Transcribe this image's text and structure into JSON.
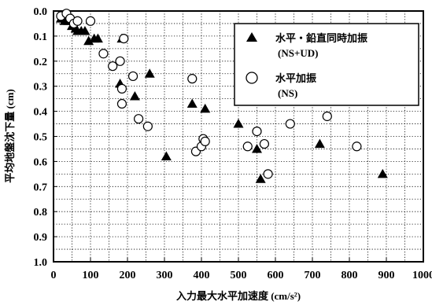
{
  "chart_data": {
    "type": "scatter",
    "xlabel": "入力最大水平加速度 (cm/s²)",
    "ylabel": "平均地盤沈下量 (cm)",
    "xlim": [
      0,
      1000
    ],
    "ylim": [
      0,
      1.0
    ],
    "y_inverted": true,
    "x_ticks": [
      "0",
      "100",
      "200",
      "300",
      "400",
      "500",
      "600",
      "700",
      "800",
      "900",
      "1000"
    ],
    "y_ticks": [
      "0.0",
      "0.1",
      "0.2",
      "0.3",
      "0.4",
      "0.5",
      "0.6",
      "0.7",
      "0.8",
      "0.9",
      "1.0"
    ],
    "grid": true,
    "legend_position": "top-right",
    "series": [
      {
        "name": "水平・鉛直同時加振\n(NS+UD)",
        "marker": "filled-triangle",
        "color": "#000000",
        "points": [
          {
            "x": 20,
            "y": 0.03
          },
          {
            "x": 30,
            "y": 0.04
          },
          {
            "x": 40,
            "y": 0.04
          },
          {
            "x": 50,
            "y": 0.06
          },
          {
            "x": 60,
            "y": 0.07
          },
          {
            "x": 65,
            "y": 0.08
          },
          {
            "x": 75,
            "y": 0.08
          },
          {
            "x": 85,
            "y": 0.08
          },
          {
            "x": 95,
            "y": 0.12
          },
          {
            "x": 110,
            "y": 0.11
          },
          {
            "x": 120,
            "y": 0.11
          },
          {
            "x": 185,
            "y": 0.11
          },
          {
            "x": 180,
            "y": 0.29
          },
          {
            "x": 260,
            "y": 0.25
          },
          {
            "x": 220,
            "y": 0.34
          },
          {
            "x": 305,
            "y": 0.58
          },
          {
            "x": 375,
            "y": 0.37
          },
          {
            "x": 410,
            "y": 0.39
          },
          {
            "x": 500,
            "y": 0.45
          },
          {
            "x": 550,
            "y": 0.55
          },
          {
            "x": 560,
            "y": 0.67
          },
          {
            "x": 720,
            "y": 0.53
          },
          {
            "x": 890,
            "y": 0.65
          }
        ]
      },
      {
        "name": "水平加振\n(NS)",
        "marker": "open-circle",
        "color": "#000000",
        "points": [
          {
            "x": 20,
            "y": 0.02
          },
          {
            "x": 35,
            "y": 0.01
          },
          {
            "x": 45,
            "y": 0.03
          },
          {
            "x": 55,
            "y": 0.05
          },
          {
            "x": 65,
            "y": 0.04
          },
          {
            "x": 100,
            "y": 0.04
          },
          {
            "x": 135,
            "y": 0.17
          },
          {
            "x": 160,
            "y": 0.22
          },
          {
            "x": 180,
            "y": 0.2
          },
          {
            "x": 185,
            "y": 0.31
          },
          {
            "x": 190,
            "y": 0.11
          },
          {
            "x": 185,
            "y": 0.37
          },
          {
            "x": 215,
            "y": 0.26
          },
          {
            "x": 230,
            "y": 0.43
          },
          {
            "x": 255,
            "y": 0.46
          },
          {
            "x": 375,
            "y": 0.27
          },
          {
            "x": 385,
            "y": 0.56
          },
          {
            "x": 400,
            "y": 0.54
          },
          {
            "x": 405,
            "y": 0.51
          },
          {
            "x": 410,
            "y": 0.52
          },
          {
            "x": 525,
            "y": 0.54
          },
          {
            "x": 550,
            "y": 0.48
          },
          {
            "x": 570,
            "y": 0.53
          },
          {
            "x": 580,
            "y": 0.65
          },
          {
            "x": 640,
            "y": 0.45
          },
          {
            "x": 740,
            "y": 0.42
          },
          {
            "x": 820,
            "y": 0.54
          }
        ]
      }
    ]
  }
}
